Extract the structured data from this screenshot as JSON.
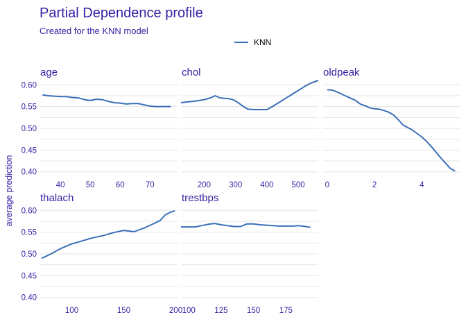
{
  "colors": {
    "text": "#371ea3",
    "line": "#3a6fb8",
    "grid": "#e4e4e4",
    "legend_text": "#000000"
  },
  "chart_data": {
    "type": "line",
    "title": "Partial Dependence profile",
    "subtitle": "Created for the KNN model",
    "ylabel": "average prediction",
    "legend": {
      "position": "top",
      "entries": [
        {
          "name": "KNN"
        }
      ]
    },
    "ylim": [
      0.39,
      0.61
    ],
    "yticks": [
      0.4,
      0.45,
      0.5,
      0.55,
      0.6
    ],
    "ytick_labels": [
      "0.40",
      "0.45",
      "0.50",
      "0.55",
      "0.60"
    ],
    "grid": true,
    "panels": [
      {
        "label": "age",
        "xlim": [
          33,
          79
        ],
        "xticks": [
          40,
          50,
          60,
          70
        ],
        "xtick_labels": [
          "40",
          "50",
          "60",
          "70"
        ],
        "series": [
          {
            "name": "KNN",
            "x": [
              34,
              36,
              38,
              40,
              42,
              44,
              46,
              48,
              50,
              52,
              54,
              56,
              58,
              60,
              62,
              64,
              66,
              68,
              70,
              72,
              74,
              76,
              77
            ],
            "y": [
              0.577,
              0.575,
              0.574,
              0.573,
              0.573,
              0.571,
              0.57,
              0.566,
              0.564,
              0.567,
              0.566,
              0.562,
              0.559,
              0.558,
              0.556,
              0.557,
              0.557,
              0.554,
              0.551,
              0.55,
              0.55,
              0.55,
              0.55
            ]
          }
        ]
      },
      {
        "label": "chol",
        "xlim": [
          126,
          564
        ],
        "xticks": [
          200,
          300,
          400,
          500
        ],
        "xtick_labels": [
          "200",
          "300",
          "400",
          "500"
        ],
        "series": [
          {
            "name": "KNN",
            "x": [
              126,
              150,
              175,
              200,
              220,
              235,
              250,
              265,
              280,
              295,
              310,
              325,
              340,
              360,
              380,
              400,
              420,
              440,
              460,
              480,
              500,
              520,
              540,
              564
            ],
            "y": [
              0.559,
              0.561,
              0.563,
              0.566,
              0.57,
              0.575,
              0.57,
              0.569,
              0.568,
              0.565,
              0.558,
              0.55,
              0.544,
              0.543,
              0.543,
              0.543,
              0.551,
              0.56,
              0.569,
              0.578,
              0.587,
              0.596,
              0.604,
              0.61
            ]
          }
        ]
      },
      {
        "label": "oldpeak",
        "xlim": [
          -0.2,
          5.6
        ],
        "xticks": [
          0,
          2,
          4
        ],
        "xtick_labels": [
          "0",
          "2",
          "4"
        ],
        "series": [
          {
            "name": "KNN",
            "x": [
              0.0,
              0.2,
              0.4,
              0.6,
              0.8,
              1.0,
              1.2,
              1.4,
              1.6,
              1.8,
              2.0,
              2.2,
              2.4,
              2.6,
              2.8,
              3.0,
              3.2,
              3.4,
              3.6,
              3.8,
              4.0,
              4.2,
              4.4,
              4.6,
              4.8,
              5.0,
              5.2,
              5.4
            ],
            "y": [
              0.589,
              0.588,
              0.584,
              0.579,
              0.574,
              0.569,
              0.564,
              0.556,
              0.552,
              0.547,
              0.545,
              0.544,
              0.541,
              0.537,
              0.531,
              0.52,
              0.508,
              0.502,
              0.496,
              0.488,
              0.48,
              0.47,
              0.458,
              0.445,
              0.432,
              0.42,
              0.408,
              0.402
            ]
          }
        ]
      },
      {
        "label": "thalach",
        "xlim": [
          69,
          201
        ],
        "xticks": [
          100,
          150,
          200
        ],
        "xtick_labels": [
          "100",
          "150",
          "200"
        ],
        "series": [
          {
            "name": "KNN",
            "x": [
              71,
              80,
              90,
              100,
              110,
              120,
              130,
              140,
              150,
              160,
              170,
              180,
              185,
              190,
              195,
              199
            ],
            "y": [
              0.49,
              0.5,
              0.513,
              0.523,
              0.53,
              0.537,
              0.542,
              0.549,
              0.554,
              0.551,
              0.56,
              0.571,
              0.577,
              0.59,
              0.596,
              0.599
            ]
          }
        ]
      },
      {
        "label": "trestbps",
        "xlim": [
          94,
          200
        ],
        "xticks": [
          100,
          125,
          150,
          175
        ],
        "xtick_labels": [
          "100",
          "125",
          "150",
          "175"
        ],
        "series": [
          {
            "name": "KNN",
            "x": [
              94,
              100,
              105,
              110,
              115,
              120,
              125,
              130,
              135,
              140,
              145,
              150,
              155,
              160,
              165,
              170,
              175,
              180,
              185,
              190,
              194
            ],
            "y": [
              0.562,
              0.562,
              0.562,
              0.565,
              0.568,
              0.57,
              0.567,
              0.565,
              0.563,
              0.563,
              0.569,
              0.569,
              0.567,
              0.566,
              0.565,
              0.564,
              0.564,
              0.564,
              0.565,
              0.563,
              0.561
            ]
          }
        ]
      }
    ]
  }
}
